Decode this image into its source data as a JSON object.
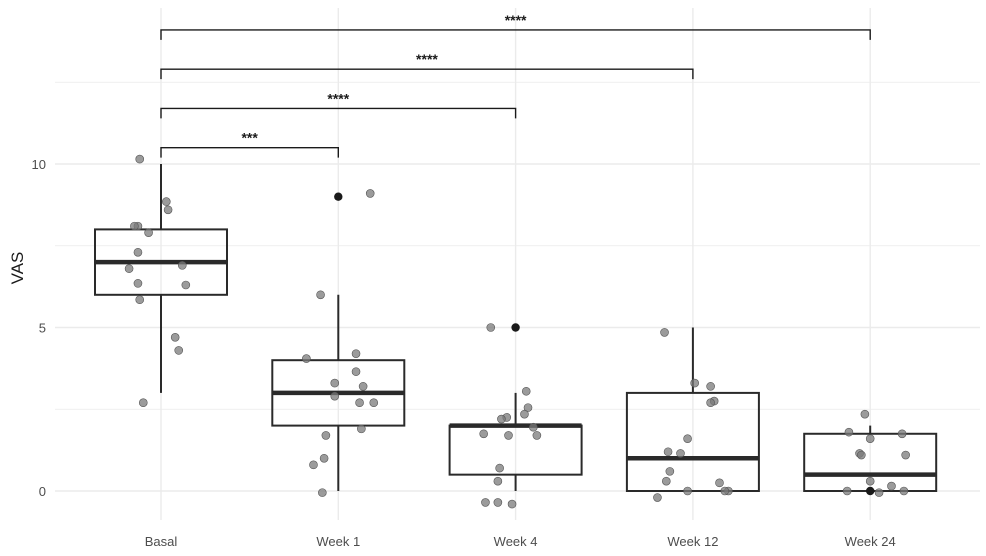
{
  "chart_data": {
    "type": "box",
    "title": "",
    "xlabel": "",
    "ylabel": "VAS",
    "ylim": [
      -0.7,
      14.2
    ],
    "yticks": [
      0,
      5,
      10
    ],
    "grid": true,
    "categories": [
      "Basal",
      "Week 1",
      "Week 4",
      "Week 12",
      "Week 24"
    ],
    "boxes": [
      {
        "q1": 6,
        "median": 7,
        "q3": 8,
        "whisker_low": 3,
        "whisker_high": 10,
        "outliers": []
      },
      {
        "q1": 2,
        "median": 3,
        "q3": 4,
        "whisker_low": 0,
        "whisker_high": 6,
        "outliers": [
          9
        ]
      },
      {
        "q1": 0.5,
        "median": 2,
        "q3": 2,
        "whisker_low": 0,
        "whisker_high": 3,
        "outliers": [
          5
        ]
      },
      {
        "q1": 0,
        "median": 1,
        "q3": 3,
        "whisker_low": 0,
        "whisker_high": 5,
        "outliers": []
      },
      {
        "q1": 0,
        "median": 0.5,
        "q3": 1.75,
        "whisker_low": 0,
        "whisker_high": 2,
        "outliers": [
          0
        ]
      }
    ],
    "points": [
      [
        [
          -0.12,
          10.15
        ],
        [
          -0.13,
          8.1
        ],
        [
          -0.15,
          8.1
        ],
        [
          0.03,
          8.85
        ],
        [
          0.04,
          8.6
        ],
        [
          -0.07,
          7.9
        ],
        [
          -0.13,
          7.3
        ],
        [
          -0.18,
          6.8
        ],
        [
          0.12,
          6.9
        ],
        [
          -0.13,
          6.35
        ],
        [
          0.14,
          6.3
        ],
        [
          -0.12,
          5.85
        ],
        [
          0.08,
          4.7
        ],
        [
          0.1,
          4.3
        ],
        [
          -0.1,
          2.7
        ]
      ],
      [
        [
          0.18,
          9.1
        ],
        [
          -0.1,
          6.0
        ],
        [
          0.1,
          4.2
        ],
        [
          -0.18,
          4.05
        ],
        [
          0.1,
          3.65
        ],
        [
          -0.02,
          3.3
        ],
        [
          0.14,
          3.2
        ],
        [
          -0.02,
          2.9
        ],
        [
          0.2,
          2.7
        ],
        [
          0.12,
          2.7
        ],
        [
          0.13,
          1.9
        ],
        [
          -0.07,
          1.7
        ],
        [
          -0.08,
          1.0
        ],
        [
          -0.14,
          0.8
        ],
        [
          -0.09,
          -0.05
        ]
      ],
      [
        [
          -0.14,
          5.0
        ],
        [
          0.06,
          3.05
        ],
        [
          0.07,
          2.55
        ],
        [
          0.05,
          2.35
        ],
        [
          -0.05,
          2.25
        ],
        [
          -0.08,
          2.2
        ],
        [
          0.1,
          1.95
        ],
        [
          -0.18,
          1.75
        ],
        [
          0.12,
          1.7
        ],
        [
          -0.04,
          1.7
        ],
        [
          -0.09,
          0.7
        ],
        [
          -0.1,
          0.3
        ],
        [
          -0.1,
          -0.35
        ],
        [
          -0.17,
          -0.35
        ],
        [
          -0.02,
          -0.4
        ]
      ],
      [
        [
          -0.16,
          4.85
        ],
        [
          0.01,
          3.3
        ],
        [
          0.1,
          3.2
        ],
        [
          0.12,
          2.75
        ],
        [
          0.1,
          2.7
        ],
        [
          -0.03,
          1.6
        ],
        [
          -0.14,
          1.2
        ],
        [
          -0.07,
          1.15
        ],
        [
          -0.13,
          0.6
        ],
        [
          -0.15,
          0.3
        ],
        [
          0.15,
          0.25
        ],
        [
          0.2,
          0.0
        ],
        [
          0.18,
          0.0
        ],
        [
          -0.03,
          0.0
        ],
        [
          -0.2,
          -0.2
        ]
      ],
      [
        [
          -0.03,
          2.35
        ],
        [
          -0.12,
          1.8
        ],
        [
          0.18,
          1.75
        ],
        [
          0.0,
          1.6
        ],
        [
          -0.06,
          1.15
        ],
        [
          -0.05,
          1.1
        ],
        [
          0.2,
          1.1
        ],
        [
          0.0,
          0.3
        ],
        [
          0.12,
          0.15
        ],
        [
          -0.13,
          0.0
        ],
        [
          0.19,
          0.0
        ],
        [
          0.05,
          -0.05
        ]
      ]
    ],
    "comparisons": [
      {
        "from": "Basal",
        "to": "Week 1",
        "label": "***",
        "y": 10.5
      },
      {
        "from": "Basal",
        "to": "Week 4",
        "label": "****",
        "y": 11.7
      },
      {
        "from": "Basal",
        "to": "Week 12",
        "label": "****",
        "y": 12.9
      },
      {
        "from": "Basal",
        "to": "Week 24",
        "label": "****",
        "y": 14.1
      }
    ],
    "colors": {
      "box_line": "#2a2a2a",
      "point": "#7a7a7a",
      "outlier": "#1a1a1a",
      "grid": "#ebebeb",
      "bracket": "#1a1a1a"
    }
  }
}
